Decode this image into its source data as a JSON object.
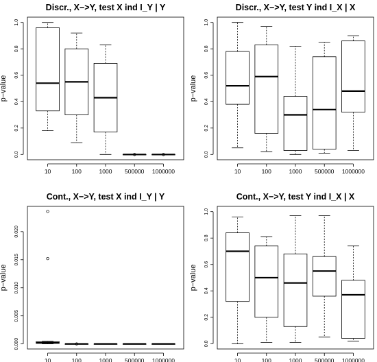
{
  "chart_data": [
    {
      "type": "box",
      "title": "Discr., X−>Y, test X ind I_Y | Y",
      "xlabel": "",
      "ylabel": "p−value",
      "categories": [
        "10",
        "100",
        "1000",
        "500000",
        "1000000"
      ],
      "yticks": [
        "0.0",
        "0.2",
        "0.4",
        "0.6",
        "0.8",
        "1.0"
      ],
      "ylim": [
        -0.04,
        1.04
      ],
      "grid": false,
      "boxes": [
        {
          "whisker_low": 0.18,
          "q1": 0.33,
          "median": 0.54,
          "q3": 0.96,
          "whisker_high": 1.0,
          "outliers": []
        },
        {
          "whisker_low": 0.09,
          "q1": 0.3,
          "median": 0.55,
          "q3": 0.8,
          "whisker_high": 0.92,
          "outliers": []
        },
        {
          "whisker_low": 0.0,
          "q1": 0.17,
          "median": 0.43,
          "q3": 0.69,
          "whisker_high": 0.83,
          "outliers": []
        },
        {
          "whisker_low": 0.0,
          "q1": 0.0,
          "median": 0.0,
          "q3": 0.0,
          "whisker_high": 0.0,
          "outliers": [
            0.0
          ]
        },
        {
          "whisker_low": 0.0,
          "q1": 0.0,
          "median": 0.0,
          "q3": 0.0,
          "whisker_high": 0.0,
          "outliers": [
            0.0
          ]
        }
      ]
    },
    {
      "type": "box",
      "title": "Discr., X−>Y, test Y ind I_X | X",
      "xlabel": "",
      "ylabel": "p−value",
      "categories": [
        "10",
        "100",
        "1000",
        "500000",
        "1000000"
      ],
      "yticks": [
        "0.0",
        "0.2",
        "0.4",
        "0.6",
        "0.8",
        "1.0"
      ],
      "ylim": [
        -0.04,
        1.04
      ],
      "grid": false,
      "boxes": [
        {
          "whisker_low": 0.05,
          "q1": 0.38,
          "median": 0.52,
          "q3": 0.78,
          "whisker_high": 1.0,
          "outliers": []
        },
        {
          "whisker_low": 0.02,
          "q1": 0.16,
          "median": 0.59,
          "q3": 0.83,
          "whisker_high": 0.97,
          "outliers": []
        },
        {
          "whisker_low": 0.0,
          "q1": 0.03,
          "median": 0.3,
          "q3": 0.44,
          "whisker_high": 0.82,
          "outliers": []
        },
        {
          "whisker_low": 0.01,
          "q1": 0.04,
          "median": 0.34,
          "q3": 0.74,
          "whisker_high": 0.85,
          "outliers": []
        },
        {
          "whisker_low": 0.03,
          "q1": 0.32,
          "median": 0.48,
          "q3": 0.86,
          "whisker_high": 0.9,
          "outliers": []
        }
      ]
    },
    {
      "type": "box",
      "title": "Cont., X−>Y, test X ind I_Y | Y",
      "xlabel": "",
      "ylabel": "p−value",
      "categories": [
        "10",
        "100",
        "1000",
        "500000",
        "1000000"
      ],
      "yticks": [
        "0.000",
        "0.005",
        "0.010",
        "0.015",
        "0.020"
      ],
      "ylim": [
        -0.0009,
        0.0245
      ],
      "grid": false,
      "boxes": [
        {
          "whisker_low": 0.0,
          "q1": 0.0001,
          "median": 0.0002,
          "q3": 0.0004,
          "whisker_high": 0.0005,
          "outliers": [
            0.0152,
            0.0236
          ]
        },
        {
          "whisker_low": 0.0,
          "q1": 0.0,
          "median": 0.0,
          "q3": 0.0,
          "whisker_high": 0.0,
          "outliers": [
            0.0
          ]
        },
        {
          "whisker_low": 0.0,
          "q1": 0.0,
          "median": 0.0,
          "q3": 0.0,
          "whisker_high": 0.0,
          "outliers": []
        },
        {
          "whisker_low": 0.0,
          "q1": 0.0,
          "median": 0.0,
          "q3": 0.0,
          "whisker_high": 0.0,
          "outliers": []
        },
        {
          "whisker_low": 0.0,
          "q1": 0.0,
          "median": 0.0,
          "q3": 0.0,
          "whisker_high": 0.0,
          "outliers": []
        }
      ]
    },
    {
      "type": "box",
      "title": "Cont., X−>Y, test Y ind I_X | X",
      "xlabel": "",
      "ylabel": "p−value",
      "categories": [
        "10",
        "100",
        "1000",
        "500000",
        "1000000"
      ],
      "yticks": [
        "0.0",
        "0.2",
        "0.4",
        "0.6",
        "0.8",
        "1.0"
      ],
      "ylim": [
        -0.04,
        1.04
      ],
      "grid": false,
      "boxes": [
        {
          "whisker_low": 0.0,
          "q1": 0.32,
          "median": 0.7,
          "q3": 0.84,
          "whisker_high": 0.96,
          "outliers": []
        },
        {
          "whisker_low": 0.01,
          "q1": 0.2,
          "median": 0.5,
          "q3": 0.74,
          "whisker_high": 0.81,
          "outliers": []
        },
        {
          "whisker_low": 0.01,
          "q1": 0.13,
          "median": 0.46,
          "q3": 0.68,
          "whisker_high": 0.97,
          "outliers": []
        },
        {
          "whisker_low": 0.05,
          "q1": 0.36,
          "median": 0.55,
          "q3": 0.66,
          "whisker_high": 0.97,
          "outliers": []
        },
        {
          "whisker_low": 0.02,
          "q1": 0.04,
          "median": 0.37,
          "q3": 0.48,
          "whisker_high": 0.74,
          "outliers": []
        }
      ]
    }
  ]
}
